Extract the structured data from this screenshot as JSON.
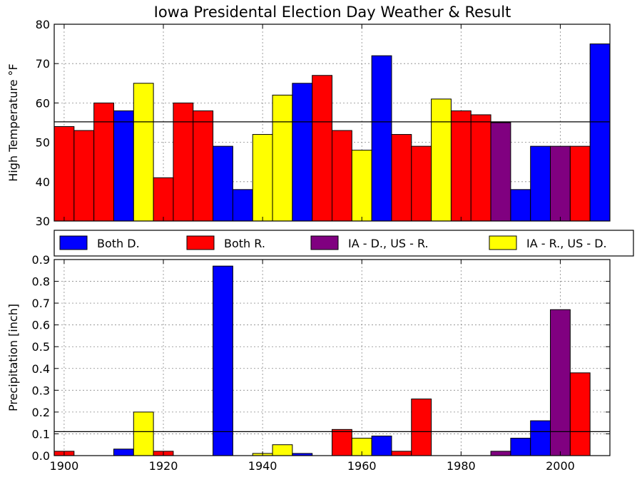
{
  "title": "Iowa Presidental Election Day Weather & Result",
  "colors": {
    "Both D.": "#0000ff",
    "Both R.": "#ff0000",
    "IA - D., US - R.": "#800080",
    "IA - R., US - D.": "#ffff00"
  },
  "legend": [
    "Both D.",
    "Both R.",
    "IA - D., US - R.",
    "IA - R., US - D."
  ],
  "chart_data": [
    {
      "type": "bar",
      "ylabel": "High Temperature °F",
      "ylim": [
        30,
        80
      ],
      "yticks": [
        30,
        40,
        50,
        60,
        70,
        80
      ],
      "xlim": [
        1898,
        2010
      ],
      "grid": true,
      "reference_line": 55.2,
      "series": [
        {
          "x": 1900,
          "value": 54,
          "group": "Both R."
        },
        {
          "x": 1904,
          "value": 53,
          "group": "Both R."
        },
        {
          "x": 1908,
          "value": 60,
          "group": "Both R."
        },
        {
          "x": 1912,
          "value": 58,
          "group": "Both D."
        },
        {
          "x": 1916,
          "value": 65,
          "group": "IA - R., US - D."
        },
        {
          "x": 1920,
          "value": 41,
          "group": "Both R."
        },
        {
          "x": 1924,
          "value": 60,
          "group": "Both R."
        },
        {
          "x": 1928,
          "value": 58,
          "group": "Both R."
        },
        {
          "x": 1932,
          "value": 49,
          "group": "Both D."
        },
        {
          "x": 1936,
          "value": 38,
          "group": "Both D."
        },
        {
          "x": 1940,
          "value": 52,
          "group": "IA - R., US - D."
        },
        {
          "x": 1944,
          "value": 62,
          "group": "IA - R., US - D."
        },
        {
          "x": 1948,
          "value": 65,
          "group": "Both D."
        },
        {
          "x": 1952,
          "value": 67,
          "group": "Both R."
        },
        {
          "x": 1956,
          "value": 53,
          "group": "Both R."
        },
        {
          "x": 1960,
          "value": 48,
          "group": "IA - R., US - D."
        },
        {
          "x": 1964,
          "value": 72,
          "group": "Both D."
        },
        {
          "x": 1968,
          "value": 52,
          "group": "Both R."
        },
        {
          "x": 1972,
          "value": 49,
          "group": "Both R."
        },
        {
          "x": 1976,
          "value": 61,
          "group": "IA - R., US - D."
        },
        {
          "x": 1980,
          "value": 58,
          "group": "Both R."
        },
        {
          "x": 1984,
          "value": 57,
          "group": "Both R."
        },
        {
          "x": 1988,
          "value": 55,
          "group": "IA - D., US - R."
        },
        {
          "x": 1992,
          "value": 38,
          "group": "Both D."
        },
        {
          "x": 1996,
          "value": 49,
          "group": "Both D."
        },
        {
          "x": 2000,
          "value": 49,
          "group": "IA - D., US - R."
        },
        {
          "x": 2004,
          "value": 49,
          "group": "Both R."
        },
        {
          "x": 2008,
          "value": 75,
          "group": "Both D."
        }
      ]
    },
    {
      "type": "bar",
      "ylabel": "Precipitation [inch]",
      "ylim": [
        0,
        0.9
      ],
      "yticks": [
        0.0,
        0.1,
        0.2,
        0.3,
        0.4,
        0.5,
        0.6,
        0.7,
        0.8,
        0.9
      ],
      "xlim": [
        1898,
        2010
      ],
      "xticks": [
        1900,
        1920,
        1940,
        1960,
        1980,
        2000
      ],
      "grid": true,
      "reference_line": 0.11,
      "series": [
        {
          "x": 1900,
          "value": 0.02,
          "group": "Both R."
        },
        {
          "x": 1904,
          "value": 0.0,
          "group": "Both R."
        },
        {
          "x": 1908,
          "value": 0.0,
          "group": "Both R."
        },
        {
          "x": 1912,
          "value": 0.03,
          "group": "Both D."
        },
        {
          "x": 1916,
          "value": 0.2,
          "group": "IA - R., US - D."
        },
        {
          "x": 1920,
          "value": 0.02,
          "group": "Both R."
        },
        {
          "x": 1924,
          "value": 0.0,
          "group": "Both R."
        },
        {
          "x": 1928,
          "value": 0.0,
          "group": "Both R."
        },
        {
          "x": 1932,
          "value": 0.87,
          "group": "Both D."
        },
        {
          "x": 1936,
          "value": 0.0,
          "group": "Both D."
        },
        {
          "x": 1940,
          "value": 0.01,
          "group": "IA - R., US - D."
        },
        {
          "x": 1944,
          "value": 0.05,
          "group": "IA - R., US - D."
        },
        {
          "x": 1948,
          "value": 0.01,
          "group": "Both D."
        },
        {
          "x": 1952,
          "value": 0.0,
          "group": "Both R."
        },
        {
          "x": 1956,
          "value": 0.12,
          "group": "Both R."
        },
        {
          "x": 1960,
          "value": 0.08,
          "group": "IA - R., US - D."
        },
        {
          "x": 1964,
          "value": 0.09,
          "group": "Both D."
        },
        {
          "x": 1968,
          "value": 0.02,
          "group": "Both R."
        },
        {
          "x": 1972,
          "value": 0.26,
          "group": "Both R."
        },
        {
          "x": 1976,
          "value": 0.0,
          "group": "IA - R., US - D."
        },
        {
          "x": 1980,
          "value": 0.0,
          "group": "Both R."
        },
        {
          "x": 1984,
          "value": 0.0,
          "group": "Both R."
        },
        {
          "x": 1988,
          "value": 0.02,
          "group": "IA - D., US - R."
        },
        {
          "x": 1992,
          "value": 0.08,
          "group": "Both D."
        },
        {
          "x": 1996,
          "value": 0.16,
          "group": "Both D."
        },
        {
          "x": 2000,
          "value": 0.67,
          "group": "IA - D., US - R."
        },
        {
          "x": 2004,
          "value": 0.38,
          "group": "Both R."
        },
        {
          "x": 2008,
          "value": 0.0,
          "group": "Both D."
        }
      ]
    }
  ]
}
